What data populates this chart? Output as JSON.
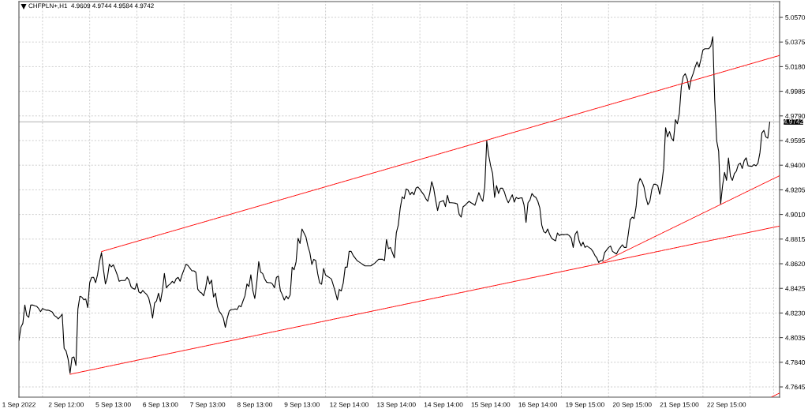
{
  "chart_data": {
    "type": "line",
    "title": "CHFPLN+,H1  4.9609 4.9744 4.9584 4.9742",
    "categories": [
      "1 Sep 2022",
      null,
      null,
      null,
      null,
      null,
      null,
      null,
      null,
      null,
      null,
      null,
      null,
      null,
      null,
      null,
      null,
      null,
      null,
      null,
      null,
      null,
      null,
      null,
      "2 Sep 12:00",
      null,
      null,
      null,
      null,
      null,
      null,
      null,
      null,
      null,
      null,
      null,
      null,
      null,
      null,
      null,
      null,
      null,
      null,
      null,
      null,
      null,
      null,
      null,
      "5 Sep 13:00",
      null,
      null,
      null,
      null,
      null,
      null,
      null,
      null,
      null,
      null,
      null,
      null,
      null,
      null,
      null,
      null,
      null,
      null,
      null,
      null,
      null,
      null,
      null,
      "6 Sep 13:00",
      null,
      null,
      null,
      null,
      null,
      null,
      null,
      null,
      null,
      null,
      null,
      null,
      null,
      null,
      null,
      null,
      null,
      null,
      null,
      null,
      null,
      null,
      null,
      "7 Sep 13:00",
      null,
      null,
      null,
      null,
      null,
      null,
      null,
      null,
      null,
      null,
      null,
      null,
      null,
      null,
      null,
      null,
      null,
      null,
      null,
      null,
      null,
      null,
      null,
      "8 Sep 13:00",
      null,
      null,
      null,
      null,
      null,
      null,
      null,
      null,
      null,
      null,
      null,
      null,
      null,
      null,
      null,
      null,
      null,
      null,
      null,
      null,
      null,
      null,
      null,
      "9 Sep 13:00",
      null,
      null,
      null,
      null,
      null,
      null,
      null,
      null,
      null,
      null,
      null,
      null,
      null,
      null,
      null,
      null,
      null,
      null,
      null,
      null,
      null,
      null,
      null,
      "12 Sep 14:00",
      null,
      null,
      null,
      null,
      null,
      null,
      null,
      null,
      null,
      null,
      null,
      null,
      null,
      null,
      null,
      null,
      null,
      null,
      null,
      null,
      null,
      null,
      null,
      "13 Sep 14:00",
      null,
      null,
      null,
      null,
      null,
      null,
      null,
      null,
      null,
      null,
      null,
      null,
      null,
      null,
      null,
      null,
      null,
      null,
      null,
      null,
      null,
      null,
      null,
      "14 Sep 14:00",
      null,
      null,
      null,
      null,
      null,
      null,
      null,
      null,
      null,
      null,
      null,
      null,
      null,
      null,
      null,
      null,
      null,
      null,
      null,
      null,
      null,
      null,
      null,
      "15 Sep 14:00",
      null,
      null,
      null,
      null,
      null,
      null,
      null,
      null,
      null,
      null,
      null,
      null,
      null,
      null,
      null,
      null,
      null,
      null,
      null,
      null,
      null,
      null,
      null,
      "16 Sep 14:00",
      null,
      null,
      null,
      null,
      null,
      null,
      null,
      null,
      null,
      null,
      null,
      null,
      null,
      null,
      null,
      null,
      null,
      null,
      null,
      null,
      null,
      null,
      null,
      "19 Sep 15:00",
      null,
      null,
      null,
      null,
      null,
      null,
      null,
      null,
      null,
      null,
      null,
      null,
      null,
      null,
      null,
      null,
      null,
      null,
      null,
      null,
      null,
      null,
      null,
      "20 Sep 15:00",
      null,
      null,
      null,
      null,
      null,
      null,
      null,
      null,
      null,
      null,
      null,
      null,
      null,
      null,
      null,
      null,
      null,
      null,
      null,
      null,
      null,
      null,
      null,
      "21 Sep 15:00",
      null,
      null,
      null,
      null,
      null,
      null,
      null,
      null,
      null,
      null,
      null,
      null,
      null,
      null,
      null,
      null,
      null,
      null,
      null,
      null,
      null,
      null,
      null,
      "22 Sep 15:00",
      null,
      null,
      null,
      null,
      null,
      null,
      null,
      null,
      null,
      null,
      null,
      null,
      null,
      null,
      null,
      null,
      null,
      null,
      null,
      null,
      null,
      null,
      null,
      null,
      null,
      null,
      null
    ],
    "series": [
      {
        "color": "#000000",
        "values": [
          4.8013,
          4.8117,
          4.8148,
          4.8293,
          4.821,
          4.8196,
          4.8293,
          4.8293,
          4.8287,
          4.8283,
          4.8266,
          4.8241,
          4.8266,
          4.8258,
          4.8252,
          4.8252,
          4.8246,
          4.8237,
          4.821,
          4.82,
          4.8183,
          4.82,
          4.8221,
          4.795,
          4.7929,
          4.7866,
          4.7753,
          4.7877,
          4.7882,
          4.7815,
          4.8262,
          4.8362,
          4.8356,
          4.8335,
          4.8341,
          4.8273,
          4.847,
          4.8512,
          4.8512,
          4.847,
          4.8533,
          4.8637,
          4.8709,
          4.8574,
          4.846,
          4.8512,
          4.8616,
          4.8595,
          4.8612,
          4.8574,
          4.8533,
          4.8481,
          4.8487,
          4.8487,
          4.8487,
          4.8512,
          4.8491,
          4.8439,
          4.8424,
          4.8418,
          4.8466,
          4.8397,
          4.8387,
          4.8408,
          4.8391,
          4.8377,
          4.835,
          4.8283,
          4.8189,
          4.8308,
          4.8325,
          4.8387,
          4.832,
          4.8408,
          4.8543,
          4.8429,
          4.8449,
          4.846,
          4.8481,
          4.8466,
          4.8501,
          4.8512,
          4.8481,
          4.8533,
          4.8574,
          4.8616,
          4.8606,
          4.8585,
          4.8564,
          4.8564,
          4.8553,
          4.8418,
          4.8397,
          4.8387,
          4.8366,
          4.8429,
          4.8522,
          4.846,
          4.8491,
          4.8356,
          4.8387,
          4.8283,
          4.8241,
          4.8221,
          4.8189,
          4.8117,
          4.8189,
          4.8246,
          4.8258,
          4.8258,
          4.8262,
          4.8258,
          4.8287,
          4.8279,
          4.8325,
          4.8366,
          4.846,
          4.8439,
          4.8533,
          4.8408,
          4.8345,
          4.847,
          4.8637,
          4.8553,
          4.8543,
          4.8501,
          4.8474,
          4.847,
          4.847,
          4.846,
          4.8429,
          4.8512,
          4.8522,
          4.8408,
          4.8374,
          4.8333,
          4.8364,
          4.8343,
          4.8374,
          4.8593,
          4.8572,
          4.8635,
          4.8822,
          4.878,
          4.8895,
          4.8864,
          4.8833,
          4.876,
          4.8708,
          4.8614,
          4.8655,
          4.8645,
          4.8541,
          4.8468,
          4.8458,
          4.8583,
          4.853,
          4.852,
          4.851,
          4.8499,
          4.8447,
          4.8395,
          4.8333,
          4.8416,
          4.8405,
          4.8468,
          4.8593,
          4.8593,
          4.8718,
          4.8718,
          4.8687,
          4.8666,
          4.8645,
          4.8635,
          4.8624,
          4.8614,
          4.8603,
          4.8603,
          4.8603,
          4.8603,
          4.8614,
          4.8624,
          4.864,
          4.8655,
          4.8655,
          4.8655,
          4.8645,
          4.8812,
          4.8739,
          4.8749,
          4.8708,
          4.8666,
          4.8864,
          4.8926,
          4.9062,
          4.9149,
          4.9135,
          4.9212,
          4.9203,
          4.9166,
          4.9187,
          4.9166,
          4.9218,
          4.9228,
          4.9208,
          4.9187,
          4.9166,
          4.9135,
          4.9114,
          4.9176,
          4.927,
          4.9218,
          4.9124,
          4.9041,
          4.9108,
          4.9114,
          4.912,
          4.9072,
          4.9162,
          4.9103,
          4.9103,
          4.9101,
          4.9099,
          4.9093,
          4.901,
          4.8989,
          4.9072,
          4.9083,
          4.9099,
          4.9114,
          4.9103,
          4.9093,
          4.9083,
          4.9133,
          4.9183,
          4.9141,
          4.9114,
          4.9228,
          4.9593,
          4.9478,
          4.9395,
          4.9333,
          4.9145,
          4.9239,
          4.9176,
          4.9218,
          4.9218,
          4.9187,
          4.9135,
          4.9103,
          4.9135,
          4.9166,
          4.9108,
          4.9145,
          4.9135,
          4.914,
          4.9141,
          4.9083,
          4.8947,
          4.9103,
          4.9124,
          4.9176,
          4.9155,
          4.9145,
          4.9114,
          4.9062,
          4.8926,
          4.8874,
          4.8864,
          4.8895,
          4.8853,
          4.8822,
          4.8811,
          4.8801,
          4.8864,
          4.8843,
          4.8853,
          4.8849,
          4.8851,
          4.8853,
          4.8843,
          4.8822,
          4.8749,
          4.8853,
          4.8878,
          4.8801,
          4.876,
          4.8791,
          4.8749,
          4.876,
          4.8749,
          4.8739,
          4.8718,
          4.8687,
          4.8666,
          4.863,
          4.8645,
          4.8645,
          4.8708,
          4.8729,
          4.8749,
          4.876,
          4.8718,
          4.8708,
          4.8697,
          4.8728,
          4.8749,
          4.877,
          4.8749,
          4.8749,
          4.8853,
          4.8968,
          4.8989,
          4.8978,
          4.9072,
          4.9249,
          4.9295,
          4.927,
          4.9228,
          4.9145,
          4.9087,
          4.9114,
          4.9208,
          4.9249,
          4.9249,
          4.9239,
          4.917,
          4.9249,
          4.9374,
          4.9697,
          4.9624,
          4.9666,
          4.9614,
          4.9593,
          4.976,
          4.9728,
          4.9812,
          5.002,
          5.0103,
          5.0124,
          5.0083,
          4.9999,
          5.0083,
          5.0124,
          5.0176,
          5.0218,
          5.0176,
          5.0239,
          5.0312,
          5.0322,
          5.0322,
          5.0322,
          5.0343,
          5.0416,
          4.9916,
          4.9593,
          4.951,
          4.9093,
          4.9239,
          4.9343,
          4.928,
          4.9458,
          4.9312,
          4.928,
          4.9333,
          4.9353,
          4.9405,
          4.9416,
          4.9374,
          4.9437,
          4.9458,
          4.9395,
          4.9393,
          4.9391,
          4.9405,
          4.9395,
          4.9416,
          4.9499,
          4.9655,
          4.9676,
          4.9624,
          4.9614,
          4.9742,
          null,
          null,
          null,
          null,
          null
        ]
      },
      {
        "type": "line",
        "color": "#ff0000",
        "values": [
          null,
          null,
          null,
          null,
          null,
          null,
          null,
          null,
          null,
          null,
          null,
          null,
          null,
          null,
          null,
          null,
          null,
          null,
          null,
          null,
          null,
          null,
          null,
          null,
          null,
          null,
          null,
          null,
          null,
          null,
          null,
          null,
          null,
          null,
          null,
          null,
          null,
          null,
          null,
          null,
          null,
          null,
          4.8716,
          4.8721,
          4.8725,
          4.873,
          4.8734,
          4.8739,
          4.8743,
          4.8748,
          4.8752,
          4.8757,
          4.8761,
          4.8766,
          4.877,
          4.8775,
          4.8779,
          4.8784,
          4.8788,
          4.8793,
          4.8797,
          4.8802,
          4.8806,
          4.8811,
          4.8815,
          4.882,
          4.8824,
          4.8829,
          4.8833,
          4.8838,
          4.8842,
          4.8847,
          4.8851,
          4.8856,
          4.886,
          4.8865,
          4.8869,
          4.8874,
          4.8878,
          4.8883,
          4.8887,
          4.8892,
          4.8896,
          4.8901,
          4.8905,
          4.891,
          4.8914,
          4.8919,
          4.8923,
          4.8928,
          4.8932,
          4.8937,
          4.8941,
          4.8946,
          4.895,
          4.8955,
          4.8959,
          4.8964,
          4.8968,
          4.8973,
          4.8977,
          4.8982,
          4.8986,
          4.8991,
          4.8995,
          4.9,
          4.9004,
          4.9009,
          4.9013,
          4.9018,
          4.9022,
          4.9027,
          4.9031,
          4.9036,
          4.904,
          4.9045,
          4.9049,
          4.9054,
          4.9058,
          4.9063,
          4.9067,
          4.9072,
          4.9076,
          4.9081,
          4.9085,
          4.909,
          4.9094,
          4.9099,
          4.9103,
          4.9108,
          4.9112,
          4.9117,
          4.9121,
          4.9126,
          4.913,
          4.9135,
          4.9139,
          4.9144,
          4.9148,
          4.9153,
          4.9157,
          4.9162,
          4.9166,
          4.9171,
          4.9175,
          4.918,
          4.9184,
          4.9189,
          4.9193,
          4.9198,
          4.9202,
          4.9207,
          4.9211,
          4.9216,
          4.922,
          4.9225,
          4.9229,
          4.9234,
          4.9238,
          4.9243,
          4.9247,
          4.9252,
          4.9256,
          4.9261,
          4.9265,
          4.927,
          4.9274,
          4.9279,
          4.9283,
          4.9288,
          4.9292,
          4.9297,
          4.9301,
          4.9306,
          4.931,
          4.9315,
          4.9319,
          4.9324,
          4.9328,
          4.9333,
          4.9337,
          4.9342,
          4.9346,
          4.9351,
          4.9355,
          4.936,
          4.9364,
          4.9369,
          4.9373,
          4.9378,
          4.9382,
          4.9387,
          4.9391,
          4.9396,
          4.94,
          4.9405,
          4.9409,
          4.9414,
          4.9418,
          4.9423,
          4.9427,
          4.9432,
          4.9436,
          4.9441,
          4.9445,
          4.945,
          4.9454,
          4.9459,
          4.9463,
          4.9468,
          4.9472,
          4.9477,
          4.9481,
          4.9486,
          4.949,
          4.9495,
          4.9499,
          4.9504,
          4.9508,
          4.9513,
          4.9517,
          4.9522,
          4.9526,
          4.9531,
          4.9535,
          4.954,
          4.9544,
          4.9549,
          4.9553,
          4.9558,
          4.9562,
          4.9567,
          4.9571,
          4.9576,
          4.958,
          4.9585,
          4.9589,
          4.9594,
          4.9598,
          4.9603,
          4.9607,
          4.9612,
          4.9616,
          4.9621,
          4.9625,
          4.963,
          4.9634,
          4.9639,
          4.9643,
          4.9648,
          4.9652,
          4.9657,
          4.9661,
          4.9666,
          4.967,
          4.9675,
          4.9679,
          4.9684,
          4.9688,
          4.9693,
          4.9697,
          4.9702,
          4.9706,
          4.9711,
          4.9715,
          4.972,
          4.9724,
          4.9729,
          4.9733,
          4.9738,
          4.9742,
          4.9747,
          4.9751,
          4.9756,
          4.976,
          4.9765,
          4.9769,
          4.9774,
          4.9778,
          4.9783,
          4.9787,
          4.9792,
          4.9796,
          4.9801,
          4.9805,
          4.981,
          4.9814,
          4.9819,
          4.9823,
          4.9828,
          4.9832,
          4.9837,
          4.9841,
          4.9846,
          4.985,
          4.9855,
          4.9859,
          4.9864,
          4.9868,
          4.9873,
          4.9877,
          4.9882,
          4.9886,
          4.9891,
          4.9895,
          4.99,
          4.9904,
          4.9909,
          4.9913,
          4.9918,
          4.9922,
          4.9927,
          4.9931,
          4.9936,
          4.994,
          4.9945,
          4.9949,
          4.9954,
          4.9958,
          4.9963,
          4.9967,
          4.9972,
          4.9976,
          4.9981,
          4.9985,
          4.999,
          4.9994,
          4.9999,
          5.0003,
          5.0008,
          5.0012,
          5.0017,
          5.0021,
          5.0026,
          5.003,
          5.0035,
          5.0039,
          5.0044,
          5.0048,
          5.0053,
          5.0057,
          5.0062,
          5.0066,
          5.0071,
          5.0075,
          5.008,
          5.0084,
          5.0089,
          5.0093,
          5.0098,
          5.0102,
          5.0107,
          5.0111,
          5.0116,
          5.012,
          5.0125,
          5.0129,
          5.0134,
          5.0138,
          5.0143,
          5.0147,
          5.0152,
          5.0156,
          5.0161,
          5.0165,
          5.017,
          5.0174,
          5.0179,
          5.0183,
          5.0188,
          5.0192,
          5.0197,
          5.0201,
          5.0206,
          5.021,
          5.0215,
          5.0219,
          5.0224,
          5.0228,
          5.0233,
          5.0237,
          5.0242,
          5.0246,
          5.0251,
          5.0255,
          5.026,
          5.0264,
          5.0269
        ]
      },
      {
        "type": "line",
        "color": "#ff0000",
        "values": [
          null,
          null,
          null,
          null,
          null,
          null,
          null,
          null,
          null,
          null,
          null,
          null,
          null,
          null,
          null,
          null,
          null,
          null,
          null,
          null,
          null,
          null,
          null,
          null,
          null,
          null,
          4.7745,
          4.7748,
          4.7752,
          4.7755,
          4.7758,
          4.7761,
          4.7765,
          4.7768,
          4.7771,
          4.7774,
          4.7778,
          4.7781,
          4.7784,
          4.7787,
          4.7791,
          4.7794,
          4.7797,
          4.78,
          4.7804,
          4.7807,
          4.781,
          4.7813,
          4.7817,
          4.782,
          4.7823,
          4.7826,
          4.783,
          4.7833,
          4.7836,
          4.7839,
          4.7843,
          4.7846,
          4.7849,
          4.7852,
          4.7856,
          4.7859,
          4.7862,
          4.7865,
          4.7869,
          4.7872,
          4.7875,
          4.7878,
          4.7882,
          4.7885,
          4.7888,
          4.7891,
          4.7895,
          4.7898,
          4.7901,
          4.7904,
          4.7908,
          4.7911,
          4.7914,
          4.7917,
          4.7921,
          4.7924,
          4.7927,
          4.793,
          4.7934,
          4.7937,
          4.794,
          4.7943,
          4.7947,
          4.795,
          4.7953,
          4.7956,
          4.796,
          4.7963,
          4.7966,
          4.7969,
          4.7973,
          4.7976,
          4.7979,
          4.7982,
          4.7986,
          4.7989,
          4.7992,
          4.7995,
          4.7999,
          4.8002,
          4.8005,
          4.8008,
          4.8012,
          4.8015,
          4.8018,
          4.8021,
          4.8025,
          4.8028,
          4.8031,
          4.8034,
          4.8038,
          4.8041,
          4.8044,
          4.8047,
          4.8051,
          4.8054,
          4.8057,
          4.806,
          4.8064,
          4.8067,
          4.807,
          4.8073,
          4.8077,
          4.808,
          4.8083,
          4.8086,
          4.809,
          4.8093,
          4.8096,
          4.8099,
          4.8103,
          4.8106,
          4.8109,
          4.8112,
          4.8116,
          4.8119,
          4.8122,
          4.8125,
          4.8129,
          4.8132,
          4.8135,
          4.8138,
          4.8142,
          4.8145,
          4.8148,
          4.8151,
          4.8155,
          4.8158,
          4.8161,
          4.8164,
          4.8168,
          4.8171,
          4.8174,
          4.8177,
          4.8181,
          4.8184,
          4.8187,
          4.819,
          4.8194,
          4.8197,
          4.82,
          4.8203,
          4.8207,
          4.821,
          4.8213,
          4.8216,
          4.822,
          4.8223,
          4.8226,
          4.8229,
          4.8233,
          4.8236,
          4.8239,
          4.8242,
          4.8246,
          4.8249,
          4.8252,
          4.8255,
          4.8259,
          4.8262,
          4.8265,
          4.8268,
          4.8272,
          4.8275,
          4.8278,
          4.8281,
          4.8285,
          4.8288,
          4.8291,
          4.8294,
          4.8298,
          4.8301,
          4.8304,
          4.8307,
          4.8311,
          4.8314,
          4.8317,
          4.832,
          4.8324,
          4.8327,
          4.833,
          4.8333,
          4.8337,
          4.834,
          4.8343,
          4.8346,
          4.835,
          4.8353,
          4.8356,
          4.8359,
          4.8363,
          4.8366,
          4.8369,
          4.8372,
          4.8376,
          4.8379,
          4.8382,
          4.8385,
          4.8389,
          4.8392,
          4.8395,
          4.8398,
          4.8402,
          4.8405,
          4.8408,
          4.8411,
          4.8415,
          4.8418,
          4.8421,
          4.8424,
          4.8428,
          4.8431,
          4.8434,
          4.8437,
          4.8441,
          4.8444,
          4.8447,
          4.845,
          4.8454,
          4.8457,
          4.846,
          4.8463,
          4.8467,
          4.847,
          4.8473,
          4.8476,
          4.848,
          4.8483,
          4.8486,
          4.8489,
          4.8493,
          4.8496,
          4.8499,
          4.8502,
          4.8506,
          4.8509,
          4.8512,
          4.8515,
          4.8519,
          4.8522,
          4.8525,
          4.8528,
          4.8532,
          4.8535,
          4.8538,
          4.8541,
          4.8545,
          4.8548,
          4.8551,
          4.8554,
          4.8558,
          4.8561,
          4.8564,
          4.8567,
          4.8571,
          4.8574,
          4.8577,
          4.858,
          4.8584,
          4.8587,
          4.859,
          4.8593,
          4.8597,
          4.86,
          4.8603,
          4.8606,
          4.861,
          4.8613,
          4.8616,
          4.8619,
          4.8623,
          4.8626,
          4.8629,
          4.8632,
          4.8636,
          4.8639,
          4.8642,
          4.8645,
          4.8649,
          4.8652,
          4.8655,
          4.8658,
          4.8662,
          4.8665,
          4.8668,
          4.8671,
          4.8675,
          4.8678,
          4.8681,
          4.8684,
          4.8688,
          4.8691,
          4.8694,
          4.8697,
          4.8701,
          4.8704,
          4.8707,
          4.871,
          4.8714,
          4.8717,
          4.872,
          4.8723,
          4.8727,
          4.873,
          4.8733,
          4.8736,
          4.874,
          4.8743,
          4.8746,
          4.8749,
          4.8753,
          4.8756,
          4.8759,
          4.8762,
          4.8766,
          4.8769,
          4.8772,
          4.8775,
          4.8779,
          4.8782,
          4.8785,
          4.8788,
          4.8792,
          4.8795,
          4.8798,
          4.8801,
          4.8805,
          4.8808,
          4.8811,
          4.8814,
          4.8818,
          4.8821,
          4.8824,
          4.8827,
          4.8831,
          4.8834,
          4.8837,
          4.884,
          4.8844,
          4.8847,
          4.885,
          4.8853,
          4.8857,
          4.886,
          4.8863,
          4.8866,
          4.887,
          4.8873,
          4.8876,
          4.8879,
          4.8883,
          4.8886,
          4.8889,
          4.8892,
          4.8896,
          4.8899,
          4.8902,
          4.8905,
          4.8909,
          4.8912,
          4.8915,
          4.8918
        ]
      },
      {
        "type": "line",
        "color": "#ff0000",
        "values": [
          null,
          null,
          null,
          null,
          null,
          null,
          null,
          null,
          null,
          null,
          null,
          null,
          null,
          null,
          null,
          null,
          null,
          null,
          null,
          null,
          null,
          null,
          null,
          null,
          null,
          null,
          null,
          null,
          null,
          null,
          null,
          null,
          null,
          null,
          null,
          null,
          null,
          null,
          null,
          null,
          null,
          null,
          null,
          null,
          null,
          null,
          null,
          null,
          null,
          null,
          null,
          null,
          null,
          null,
          null,
          null,
          null,
          null,
          null,
          null,
          null,
          null,
          null,
          null,
          null,
          null,
          null,
          null,
          null,
          null,
          null,
          null,
          null,
          null,
          null,
          null,
          null,
          null,
          null,
          null,
          null,
          null,
          null,
          null,
          null,
          null,
          null,
          null,
          null,
          null,
          null,
          null,
          null,
          null,
          null,
          null,
          null,
          null,
          null,
          null,
          null,
          null,
          null,
          null,
          null,
          null,
          null,
          null,
          null,
          null,
          null,
          null,
          null,
          null,
          null,
          null,
          null,
          null,
          null,
          null,
          null,
          null,
          null,
          null,
          null,
          null,
          null,
          null,
          null,
          null,
          null,
          null,
          null,
          null,
          null,
          null,
          null,
          null,
          null,
          null,
          null,
          null,
          null,
          null,
          null,
          null,
          null,
          null,
          null,
          null,
          null,
          null,
          null,
          null,
          null,
          null,
          null,
          null,
          null,
          null,
          null,
          null,
          null,
          null,
          null,
          null,
          null,
          null,
          null,
          null,
          null,
          null,
          null,
          null,
          null,
          null,
          null,
          null,
          null,
          null,
          null,
          null,
          null,
          null,
          null,
          null,
          null,
          null,
          null,
          null,
          null,
          null,
          null,
          null,
          null,
          null,
          null,
          null,
          null,
          null,
          null,
          null,
          null,
          null,
          null,
          null,
          null,
          null,
          null,
          null,
          null,
          null,
          null,
          null,
          null,
          null,
          null,
          null,
          null,
          null,
          null,
          null,
          null,
          null,
          null,
          null,
          null,
          null,
          null,
          null,
          null,
          null,
          null,
          null,
          null,
          null,
          null,
          null,
          null,
          null,
          null,
          null,
          null,
          null,
          null,
          null,
          null,
          null,
          null,
          null,
          null,
          null,
          null,
          null,
          null,
          null,
          null,
          null,
          null,
          null,
          null,
          null,
          null,
          null,
          null,
          null,
          null,
          null,
          null,
          null,
          null,
          null,
          null,
          null,
          null,
          null,
          null,
          null,
          null,
          null,
          null,
          null,
          null,
          null,
          null,
          null,
          null,
          null,
          null,
          null,
          null,
          null,
          null,
          null,
          null,
          null,
          null,
          4.8633,
          4.8641,
          4.8648,
          4.8656,
          4.8663,
          4.8671,
          4.8679,
          4.8686,
          4.8694,
          4.8701,
          4.8709,
          4.8717,
          4.8724,
          4.8732,
          4.8739,
          4.8747,
          4.8755,
          4.8762,
          4.877,
          4.8777,
          4.8785,
          4.8793,
          4.88,
          4.8808,
          4.8815,
          4.8823,
          4.8831,
          4.8838,
          4.8846,
          4.8853,
          4.8861,
          4.8869,
          4.8876,
          4.8884,
          4.8891,
          4.8899,
          4.8907,
          4.8914,
          4.8922,
          4.8929,
          4.8937,
          4.8945,
          4.8952,
          4.896,
          4.8967,
          4.8975,
          4.8983,
          4.899,
          4.8998,
          4.9005,
          4.9013,
          4.9021,
          4.9028,
          4.9036,
          4.9043,
          4.9051,
          4.9059,
          4.9066,
          4.9074,
          4.9081,
          4.9089,
          4.9097,
          4.9104,
          4.9112,
          4.9119,
          4.9127,
          4.9135,
          4.9142,
          4.915,
          4.9157,
          4.9165,
          4.9173,
          4.918,
          4.9188,
          4.9195,
          4.9203,
          4.9211,
          4.9218,
          4.9226,
          4.9233,
          4.9241,
          4.9249,
          4.9256,
          4.9264,
          4.9271,
          4.9279,
          4.9287,
          4.9294,
          4.9302,
          4.9309,
          4.9317
        ]
      },
      {
        "type": "line",
        "color": "#ff0000",
        "values": [
          null,
          null,
          null,
          null,
          null,
          null,
          null,
          null,
          null,
          null,
          null,
          null,
          null,
          null,
          null,
          null,
          null,
          null,
          null,
          null,
          null,
          null,
          null,
          null,
          null,
          null,
          null,
          null,
          null,
          null,
          null,
          null,
          null,
          null,
          null,
          null,
          null,
          null,
          null,
          null,
          null,
          null,
          null,
          null,
          null,
          null,
          null,
          null,
          null,
          null,
          null,
          null,
          null,
          null,
          null,
          null,
          null,
          null,
          null,
          null,
          null,
          null,
          null,
          null,
          null,
          null,
          null,
          null,
          null,
          null,
          null,
          null,
          null,
          null,
          null,
          null,
          null,
          null,
          null,
          null,
          null,
          null,
          null,
          null,
          null,
          null,
          null,
          null,
          null,
          null,
          null,
          null,
          null,
          null,
          null,
          null,
          null,
          null,
          null,
          null,
          null,
          null,
          null,
          null,
          null,
          null,
          null,
          null,
          null,
          null,
          null,
          null,
          null,
          null,
          null,
          null,
          null,
          null,
          null,
          null,
          null,
          null,
          null,
          null,
          null,
          null,
          null,
          null,
          null,
          null,
          null,
          null,
          null,
          null,
          null,
          null,
          null,
          null,
          null,
          null,
          null,
          null,
          null,
          null,
          null,
          null,
          null,
          null,
          null,
          null,
          null,
          null,
          null,
          null,
          null,
          null,
          null,
          null,
          null,
          null,
          null,
          null,
          null,
          null,
          null,
          null,
          null,
          null,
          null,
          null,
          null,
          null,
          null,
          null,
          null,
          null,
          null,
          null,
          null,
          null,
          null,
          null,
          null,
          null,
          null,
          null,
          null,
          null,
          null,
          null,
          null,
          null,
          null,
          null,
          null,
          null,
          null,
          null,
          null,
          null,
          null,
          null,
          null,
          null,
          null,
          null,
          null,
          null,
          null,
          null,
          null,
          null,
          null,
          null,
          null,
          null,
          null,
          null,
          null,
          null,
          null,
          null,
          null,
          null,
          null,
          null,
          null,
          null,
          null,
          null,
          null,
          null,
          null,
          null,
          null,
          null,
          null,
          null,
          null,
          null,
          null,
          null,
          null,
          null,
          null,
          null,
          null,
          null,
          null,
          null,
          null,
          null,
          null,
          null,
          null,
          null,
          null,
          null,
          null,
          null,
          null,
          null,
          null,
          null,
          null,
          null,
          null,
          null,
          null,
          null,
          null,
          null,
          null,
          null,
          null,
          null,
          null,
          null,
          null,
          null,
          null,
          null,
          null,
          null,
          null,
          null,
          null,
          null,
          null,
          null,
          null,
          null,
          null,
          null,
          null,
          null,
          null,
          null,
          null,
          null,
          null,
          null,
          null,
          null,
          null,
          null,
          null,
          null,
          null,
          null,
          null,
          null,
          null,
          null,
          null,
          null,
          null,
          null,
          null,
          null,
          null,
          null,
          null,
          null,
          null,
          null,
          null,
          null,
          null,
          null,
          null,
          null,
          null,
          null,
          null,
          null,
          null,
          null,
          null,
          null,
          null,
          null,
          null,
          null,
          null,
          null,
          null,
          null,
          null,
          null,
          null,
          null,
          null,
          null,
          null,
          null,
          null,
          null,
          null,
          null,
          null,
          null,
          null,
          null,
          null,
          null,
          null,
          null,
          null,
          null,
          null,
          null,
          null,
          null,
          null,
          null,
          null,
          null,
          null,
          null,
          null,
          null,
          null,
          4.7566,
          4.7574,
          4.7581,
          4.7589,
          4.7596
        ]
      }
    ],
    "ylim": [
      4.7564,
      5.0695
    ],
    "yticks": [
      4.7645,
      {
        "value": 4.784,
        "label": "4.7840"
      },
      4.8035,
      {
        "value": 4.823,
        "label": "4.8230"
      },
      4.8425,
      {
        "value": 4.862,
        "label": "4.8620"
      },
      4.8815,
      {
        "value": 4.901,
        "label": "4.9010"
      },
      4.9205,
      {
        "value": 4.94,
        "label": "4.9400"
      },
      4.9595,
      {
        "value": 4.979,
        "label": "4.9790"
      },
      4.9985,
      {
        "value": 5.018,
        "label": "5.0180"
      },
      5.0375,
      {
        "value": 5.057,
        "label": "5.0570"
      }
    ],
    "ref_lines": [
      {
        "axis": "y",
        "value": 4.9742,
        "label": "4.9742",
        "color": "#c0c0c0"
      }
    ],
    "grid": true
  }
}
